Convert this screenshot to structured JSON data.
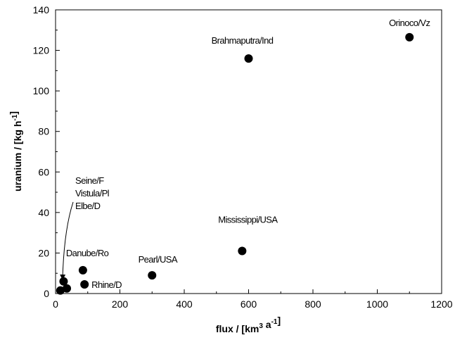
{
  "chart_data": {
    "type": "scatter",
    "title": "",
    "xlabel": "flux / [km3 a-1]",
    "ylabel": "uranium / [kg h-1]",
    "xlim": [
      0,
      1200
    ],
    "ylim": [
      0,
      140
    ],
    "x_ticks": [
      0,
      200,
      400,
      600,
      800,
      1000,
      1200
    ],
    "y_ticks": [
      0,
      20,
      40,
      60,
      80,
      100,
      120,
      140
    ],
    "grid": false,
    "marker_color": "#000000",
    "points": [
      {
        "x": 1100,
        "y": 126.5,
        "label": "Orinoco/Vz"
      },
      {
        "x": 600,
        "y": 116,
        "label": "Brahmaputra/Ind"
      },
      {
        "x": 580,
        "y": 21,
        "label": "Mississippi/USA"
      },
      {
        "x": 300,
        "y": 9,
        "label": "Pearl/USA"
      },
      {
        "x": 85,
        "y": 11.5,
        "label": "Danube/Ro"
      },
      {
        "x": 90,
        "y": 4.5,
        "label": "Rhine/D"
      },
      {
        "x": 25,
        "y": 6,
        "label": ""
      },
      {
        "x": 35,
        "y": 2.5,
        "label": ""
      },
      {
        "x": 15,
        "y": 1.5,
        "label": ""
      }
    ],
    "annotation": {
      "lines": [
        "Seine/F",
        "Vistula/Pl",
        "Elbe/D"
      ]
    }
  }
}
